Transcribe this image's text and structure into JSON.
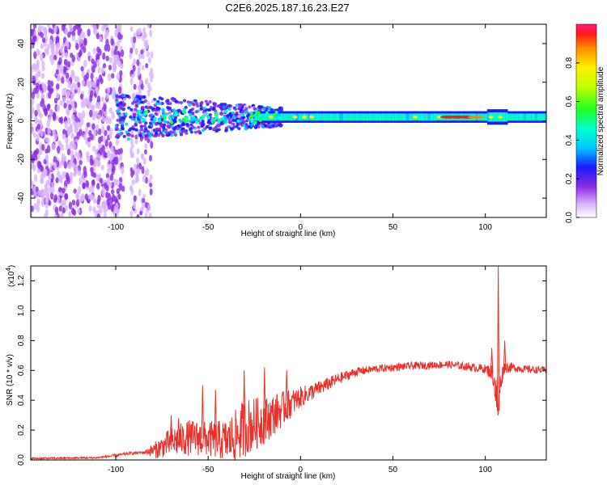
{
  "title": "C2E6.2025.187.16.23.E27",
  "chart_data": [
    {
      "type": "heatmap",
      "name": "spectrogram",
      "xlabel": "Height of straight line (km)",
      "ylabel": "Frequency (Hz)",
      "xlim": [
        -146,
        133
      ],
      "ylim": [
        -50,
        50
      ],
      "xticks": [
        -100,
        -50,
        0,
        50,
        100
      ],
      "yticks": [
        -40,
        -20,
        0,
        20,
        40
      ],
      "colorbar": {
        "label": "Normalized spectral amplitude",
        "range": [
          0,
          1
        ],
        "ticks": [
          "0.0",
          "0.2",
          "0.4",
          "0.6",
          "0.8"
        ]
      },
      "grid": false
    },
    {
      "type": "line",
      "name": "snr",
      "xlabel": "Height of straight line (km)",
      "ylabel": "SNR (10 * v/v)",
      "multiplier": "(x10",
      "multiplier_exp": "4",
      "multiplier_close": ")",
      "xlim": [
        -146,
        133
      ],
      "ylim": [
        0,
        1.3
      ],
      "xticks": [
        -100,
        -50,
        0,
        50,
        100
      ],
      "yticks": [
        "0.0",
        "0.2",
        "0.4",
        "0.6",
        "0.8",
        "1.0",
        "1.2"
      ],
      "color": "#e8312b",
      "profile": {
        "x": [
          -146,
          -110,
          -100,
          -92,
          -85,
          -78,
          -70,
          -60,
          -50,
          -40,
          -35,
          -30,
          -20,
          -10,
          0,
          10,
          20,
          30,
          40,
          60,
          80,
          100,
          104,
          106,
          107,
          108,
          110,
          115,
          120,
          133
        ],
        "mean": [
          0.01,
          0.015,
          0.03,
          0.045,
          0.05,
          0.07,
          0.12,
          0.15,
          0.14,
          0.13,
          0.16,
          0.22,
          0.26,
          0.34,
          0.42,
          0.48,
          0.54,
          0.59,
          0.61,
          0.63,
          0.64,
          0.61,
          0.58,
          0.42,
          0.33,
          0.5,
          0.62,
          0.62,
          0.61,
          0.6
        ],
        "noise": [
          0.006,
          0.006,
          0.01,
          0.01,
          0.01,
          0.06,
          0.1,
          0.12,
          0.12,
          0.14,
          0.18,
          0.2,
          0.16,
          0.12,
          0.07,
          0.05,
          0.04,
          0.03,
          0.025,
          0.025,
          0.025,
          0.03,
          0.06,
          0.15,
          0.1,
          0.08,
          0.04,
          0.03,
          0.025,
          0.025
        ]
      },
      "spikes": [
        {
          "x": 107.0,
          "y": 1.3
        },
        {
          "x": 110.5,
          "y": 0.8
        },
        {
          "x": 103.5,
          "y": 0.75
        },
        {
          "x": -19.5,
          "y": 0.62
        },
        {
          "x": -30.5,
          "y": 0.6
        },
        {
          "x": -7.5,
          "y": 0.6
        },
        {
          "x": -53,
          "y": 0.5
        },
        {
          "x": -46,
          "y": 0.47
        },
        {
          "x": -70,
          "y": 0.3
        },
        {
          "x": -66,
          "y": 0.28
        }
      ]
    }
  ]
}
